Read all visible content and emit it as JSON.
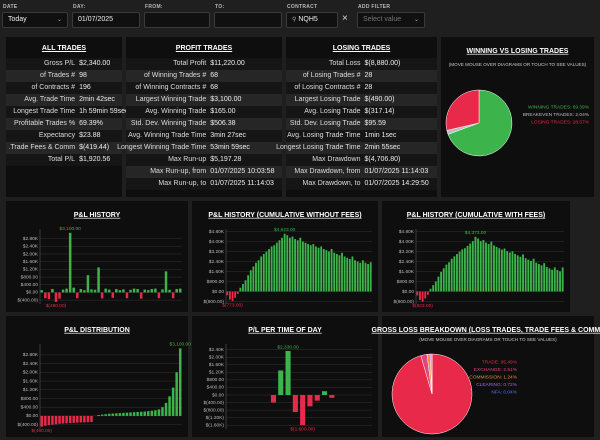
{
  "filters": {
    "date": {
      "label": "DATE",
      "value": "Today"
    },
    "day": {
      "label": "DAY:",
      "value": "01/07/2025"
    },
    "from": {
      "label": "FROM:"
    },
    "to": {
      "label": "TO:"
    },
    "contract": {
      "label": "CONTRACT",
      "value": "NQH5"
    },
    "add_filter": {
      "label": "ADD FILTER",
      "placeholder": "Select value"
    }
  },
  "stats": [
    {
      "title": "ALL TRADES",
      "rows": [
        {
          "label": "Gross P/L",
          "value": "$2,340.00"
        },
        {
          "label": "# of Trades",
          "value": "98"
        },
        {
          "label": "# of Contracts",
          "value": "196"
        },
        {
          "label": "Avg. Trade Time",
          "value": "2min 42sec"
        },
        {
          "label": "Longest Trade Time",
          "value": "1h 59min 59sec"
        },
        {
          "label": "% Profitable Trades",
          "value": "69.39%"
        },
        {
          "label": "Expectancy",
          "value": "$23.88"
        },
        {
          "label": "Trade Fees & Comm.",
          "value": "$(419.44)"
        },
        {
          "label": "Total P/L",
          "value": "$1,920.56"
        }
      ]
    },
    {
      "title": "PROFIT TRADES",
      "rows": [
        {
          "label": "Total Profit",
          "value": "$11,220.00"
        },
        {
          "label": "# of Winning Trades",
          "value": "68"
        },
        {
          "label": "# of Winning Contracts",
          "value": "68"
        },
        {
          "label": "Largest Winning Trade",
          "value": "$3,100.00"
        },
        {
          "label": "Avg. Winning Trade",
          "value": "$165.00"
        },
        {
          "label": "Std. Dev. Winning Trade",
          "value": "$506.38"
        },
        {
          "label": "Avg. Winning Trade Time",
          "value": "3min 27sec"
        },
        {
          "label": "Longest Winning Trade Time",
          "value": "53min 59sec"
        },
        {
          "label": "Max Run-up",
          "value": "$5,197.28"
        },
        {
          "label": "Max Run-up, from",
          "value": "01/07/2025 10:03:58"
        },
        {
          "label": "Max Run-up, to",
          "value": "01/07/2025 11:14:03"
        }
      ]
    },
    {
      "title": "LOSING TRADES",
      "rows": [
        {
          "label": "Total Loss",
          "value": "$(8,880.00)"
        },
        {
          "label": "# of Losing Trades",
          "value": "28"
        },
        {
          "label": "# of Losing Contracts",
          "value": "28"
        },
        {
          "label": "Largest Losing Trade",
          "value": "$(490.00)"
        },
        {
          "label": "Avg. Losing Trade",
          "value": "$(317.14)"
        },
        {
          "label": "Std. Dev. Losing Trade",
          "value": "$95.59"
        },
        {
          "label": "Avg. Losing Trade Time",
          "value": "1min 1sec"
        },
        {
          "label": "Longest Losing Trade Time",
          "value": "2min 55sec"
        },
        {
          "label": "Max Drawdown",
          "value": "$(4,706.80)"
        },
        {
          "label": "Max Drawdown, from",
          "value": "01/07/2025 11:14:03"
        },
        {
          "label": "Max Drawdown, to",
          "value": "01/07/2025 14:29:50"
        }
      ]
    }
  ],
  "charts": [
    {
      "type": "pie",
      "title": "WINNING VS LOSING TRADES",
      "subtitle": "(MOVE MOUSE OVER DIAGRAMS OR TOUCH TO SEE VALUES)",
      "values": [
        69.39,
        2.04,
        28.57
      ],
      "labels": [
        "WINNING TRADES: 69.39%",
        "BREAKEVEN TRADES: 2.04%",
        "LOSING TRADES: 28.57%"
      ],
      "colors": [
        "#3cb44b",
        "#bdbdbd",
        "#e8294a"
      ]
    },
    {
      "type": "bar",
      "title": "P&L HISTORY",
      "positive_color": "#3cb44b",
      "negative_color": "#e8294a",
      "grid": true,
      "values": [
        120,
        -300,
        -350,
        180,
        -490,
        -320,
        150,
        200,
        3100,
        250,
        -300,
        180,
        120,
        900,
        160,
        140,
        1300,
        -310,
        200,
        150,
        -280,
        180,
        120,
        160,
        -300,
        140,
        200,
        180,
        -320,
        150,
        120,
        180,
        200,
        -300,
        160,
        1100,
        140,
        -300,
        180,
        200
      ],
      "ylim": [
        -600,
        3300
      ],
      "yticks": [
        {
          "value": 2800,
          "label": "$2.80K"
        },
        {
          "value": 2400,
          "label": "$2.40K"
        },
        {
          "value": 2000,
          "label": "$2.00K"
        },
        {
          "value": 1600,
          "label": "$1.60K"
        },
        {
          "value": 1200,
          "label": "$1.20K"
        },
        {
          "value": 800,
          "label": "$800.00"
        },
        {
          "value": 400,
          "label": "$400.00"
        },
        {
          "value": 0,
          "label": "$0.00"
        },
        {
          "value": -400,
          "label": "$(400.00)"
        }
      ],
      "annotations": [
        {
          "value": 3100,
          "label": "$3,100.00"
        },
        {
          "value": -490,
          "label": "$(490.00)"
        }
      ]
    },
    {
      "type": "bar",
      "title": "P&L HISTORY (CUMULATIVE WITHOUT FEES)",
      "positive_color": "#3cb44b",
      "negative_color": "#e8294a",
      "grid": true,
      "values": [
        -300,
        -650,
        -773,
        -500,
        -200,
        300,
        600,
        900,
        1300,
        1700,
        2000,
        2300,
        2500,
        2800,
        3000,
        3200,
        3400,
        3600,
        3700,
        3900,
        4100,
        4300,
        4623,
        4500,
        4300,
        4400,
        4200,
        4100,
        4300,
        4000,
        3900,
        3800,
        3700,
        3800,
        3600,
        3500,
        3600,
        3400,
        3300,
        3200,
        3400,
        3100,
        3000,
        2900,
        3100,
        2800,
        2700,
        2600,
        2800,
        2500,
        2400,
        2300,
        2500,
        2300,
        2200,
        2340
      ],
      "ylim": [
        -1000,
        5000
      ],
      "yticks": [
        {
          "value": 4800,
          "label": "$4.80K"
        },
        {
          "value": 4000,
          "label": "$4.00K"
        },
        {
          "value": 3200,
          "label": "$3.20K"
        },
        {
          "value": 2400,
          "label": "$2.40K"
        },
        {
          "value": 1600,
          "label": "$1.60K"
        },
        {
          "value": 800,
          "label": "$800.00"
        },
        {
          "value": 0,
          "label": "$0.00"
        },
        {
          "value": -800,
          "label": "$(800.00)"
        }
      ],
      "annotations": [
        {
          "value": 4623,
          "label": "$4,623.00"
        },
        {
          "value": -773,
          "label": "$(773.00)"
        }
      ]
    },
    {
      "type": "bar",
      "title": "P&L HISTORY (CUMULATIVE WITH FEES)",
      "positive_color": "#3cb44b",
      "negative_color": "#e8294a",
      "grid": true,
      "values": [
        -310,
        -680,
        -823,
        -560,
        -270,
        220,
        510,
        800,
        1190,
        1570,
        1860,
        2150,
        2340,
        2620,
        2810,
        3000,
        3190,
        3370,
        3460,
        3650,
        3840,
        4030,
        4373,
        4240,
        4030,
        4120,
        3910,
        3800,
        3990,
        3680,
        3570,
        3460,
        3350,
        3440,
        3230,
        3120,
        3210,
        3000,
        2890,
        2780,
        2970,
        2660,
        2550,
        2440,
        2620,
        2310,
        2200,
        2090,
        2270,
        1960,
        1850,
        1740,
        1930,
        1720,
        1610,
        1921
      ],
      "ylim": [
        -1000,
        5000
      ],
      "yticks": [
        {
          "value": 4800,
          "label": "$4.80K"
        },
        {
          "value": 4000,
          "label": "$4.00K"
        },
        {
          "value": 3200,
          "label": "$3.20K"
        },
        {
          "value": 2400,
          "label": "$2.40K"
        },
        {
          "value": 1600,
          "label": "$1.60K"
        },
        {
          "value": 800,
          "label": "$800.00"
        },
        {
          "value": 0,
          "label": "$0.00"
        },
        {
          "value": -800,
          "label": "$(800.00)"
        }
      ],
      "annotations": [
        {
          "value": 4373,
          "label": "$4,373.00"
        },
        {
          "value": -823,
          "label": "$(823.00)"
        }
      ]
    },
    {
      "type": "bar",
      "title": "P&L DISTRIBUTION",
      "positive_color": "#3cb44b",
      "negative_color": "#e8294a",
      "grid": true,
      "values": [
        -490,
        -450,
        -420,
        -400,
        -380,
        -360,
        -350,
        -340,
        -330,
        -320,
        -310,
        -300,
        -300,
        -290,
        -280,
        0,
        40,
        60,
        80,
        100,
        110,
        120,
        130,
        140,
        150,
        160,
        170,
        180,
        190,
        200,
        220,
        240,
        260,
        300,
        400,
        600,
        900,
        1300,
        2000,
        3100
      ],
      "ylim": [
        -600,
        3300
      ],
      "yticks": [
        {
          "value": 2800,
          "label": "$2.80K"
        },
        {
          "value": 2400,
          "label": "$2.40K"
        },
        {
          "value": 2000,
          "label": "$2.00K"
        },
        {
          "value": 1600,
          "label": "$1.60K"
        },
        {
          "value": 1200,
          "label": "$1.20K"
        },
        {
          "value": 800,
          "label": "$800.00"
        },
        {
          "value": 400,
          "label": "$400.00"
        },
        {
          "value": 0,
          "label": "$0.00"
        },
        {
          "value": -400,
          "label": "$(400.00)"
        }
      ],
      "annotations": [
        {
          "value": 3100,
          "label": "$3,100.00"
        },
        {
          "value": -490,
          "label": "$(490.00)"
        }
      ]
    },
    {
      "type": "bar",
      "title": "P/L PER TIME OF DAY",
      "positive_color": "#3cb44b",
      "negative_color": "#e8294a",
      "grid": true,
      "values": [
        0,
        0,
        0,
        0,
        0,
        0,
        -400,
        1300,
        2330,
        -900,
        -1600,
        -600,
        -300,
        200,
        -150,
        0,
        0,
        0,
        0,
        0
      ],
      "ylim": [
        -1800,
        2700
      ],
      "yticks": [
        {
          "value": 2400,
          "label": "$2.40K"
        },
        {
          "value": 2000,
          "label": "$2.00K"
        },
        {
          "value": 1600,
          "label": "$1.60K"
        },
        {
          "value": 1200,
          "label": "$1.20K"
        },
        {
          "value": 800,
          "label": "$800.00"
        },
        {
          "value": 400,
          "label": "$400.00"
        },
        {
          "value": 0,
          "label": "$0.00"
        },
        {
          "value": -400,
          "label": "$(400.00)"
        },
        {
          "value": -800,
          "label": "$(800.00)"
        },
        {
          "value": -1200,
          "label": "$(1.20K)"
        },
        {
          "value": -1600,
          "label": "$(1.60K)"
        }
      ],
      "annotations": [
        {
          "value": 2330,
          "label": "$2,330.00"
        },
        {
          "value": -1600,
          "label": "$(1,600.00)"
        }
      ]
    },
    {
      "type": "pie",
      "title": "GROSS LOSS BREAKDOWN (LOSS TRADES, TRADE FEES & COMM.)",
      "subtitle": "(MOVE MOUSE OVER DIAGRAMS OR TOUCH TO SEE VALUES)",
      "values": [
        95.49,
        2.51,
        1.24,
        0.72,
        0.04
      ],
      "labels": [
        "TRADE: 95.49%",
        "EXCHANGE: 2.51%",
        "COMMISSION: 1.24%",
        "CLEARING: 0.72%",
        "NFA: 0.04%"
      ],
      "colors": [
        "#e8294a",
        "#e0457b",
        "#f08c3a",
        "#a066e8",
        "#5a78f0"
      ]
    }
  ]
}
